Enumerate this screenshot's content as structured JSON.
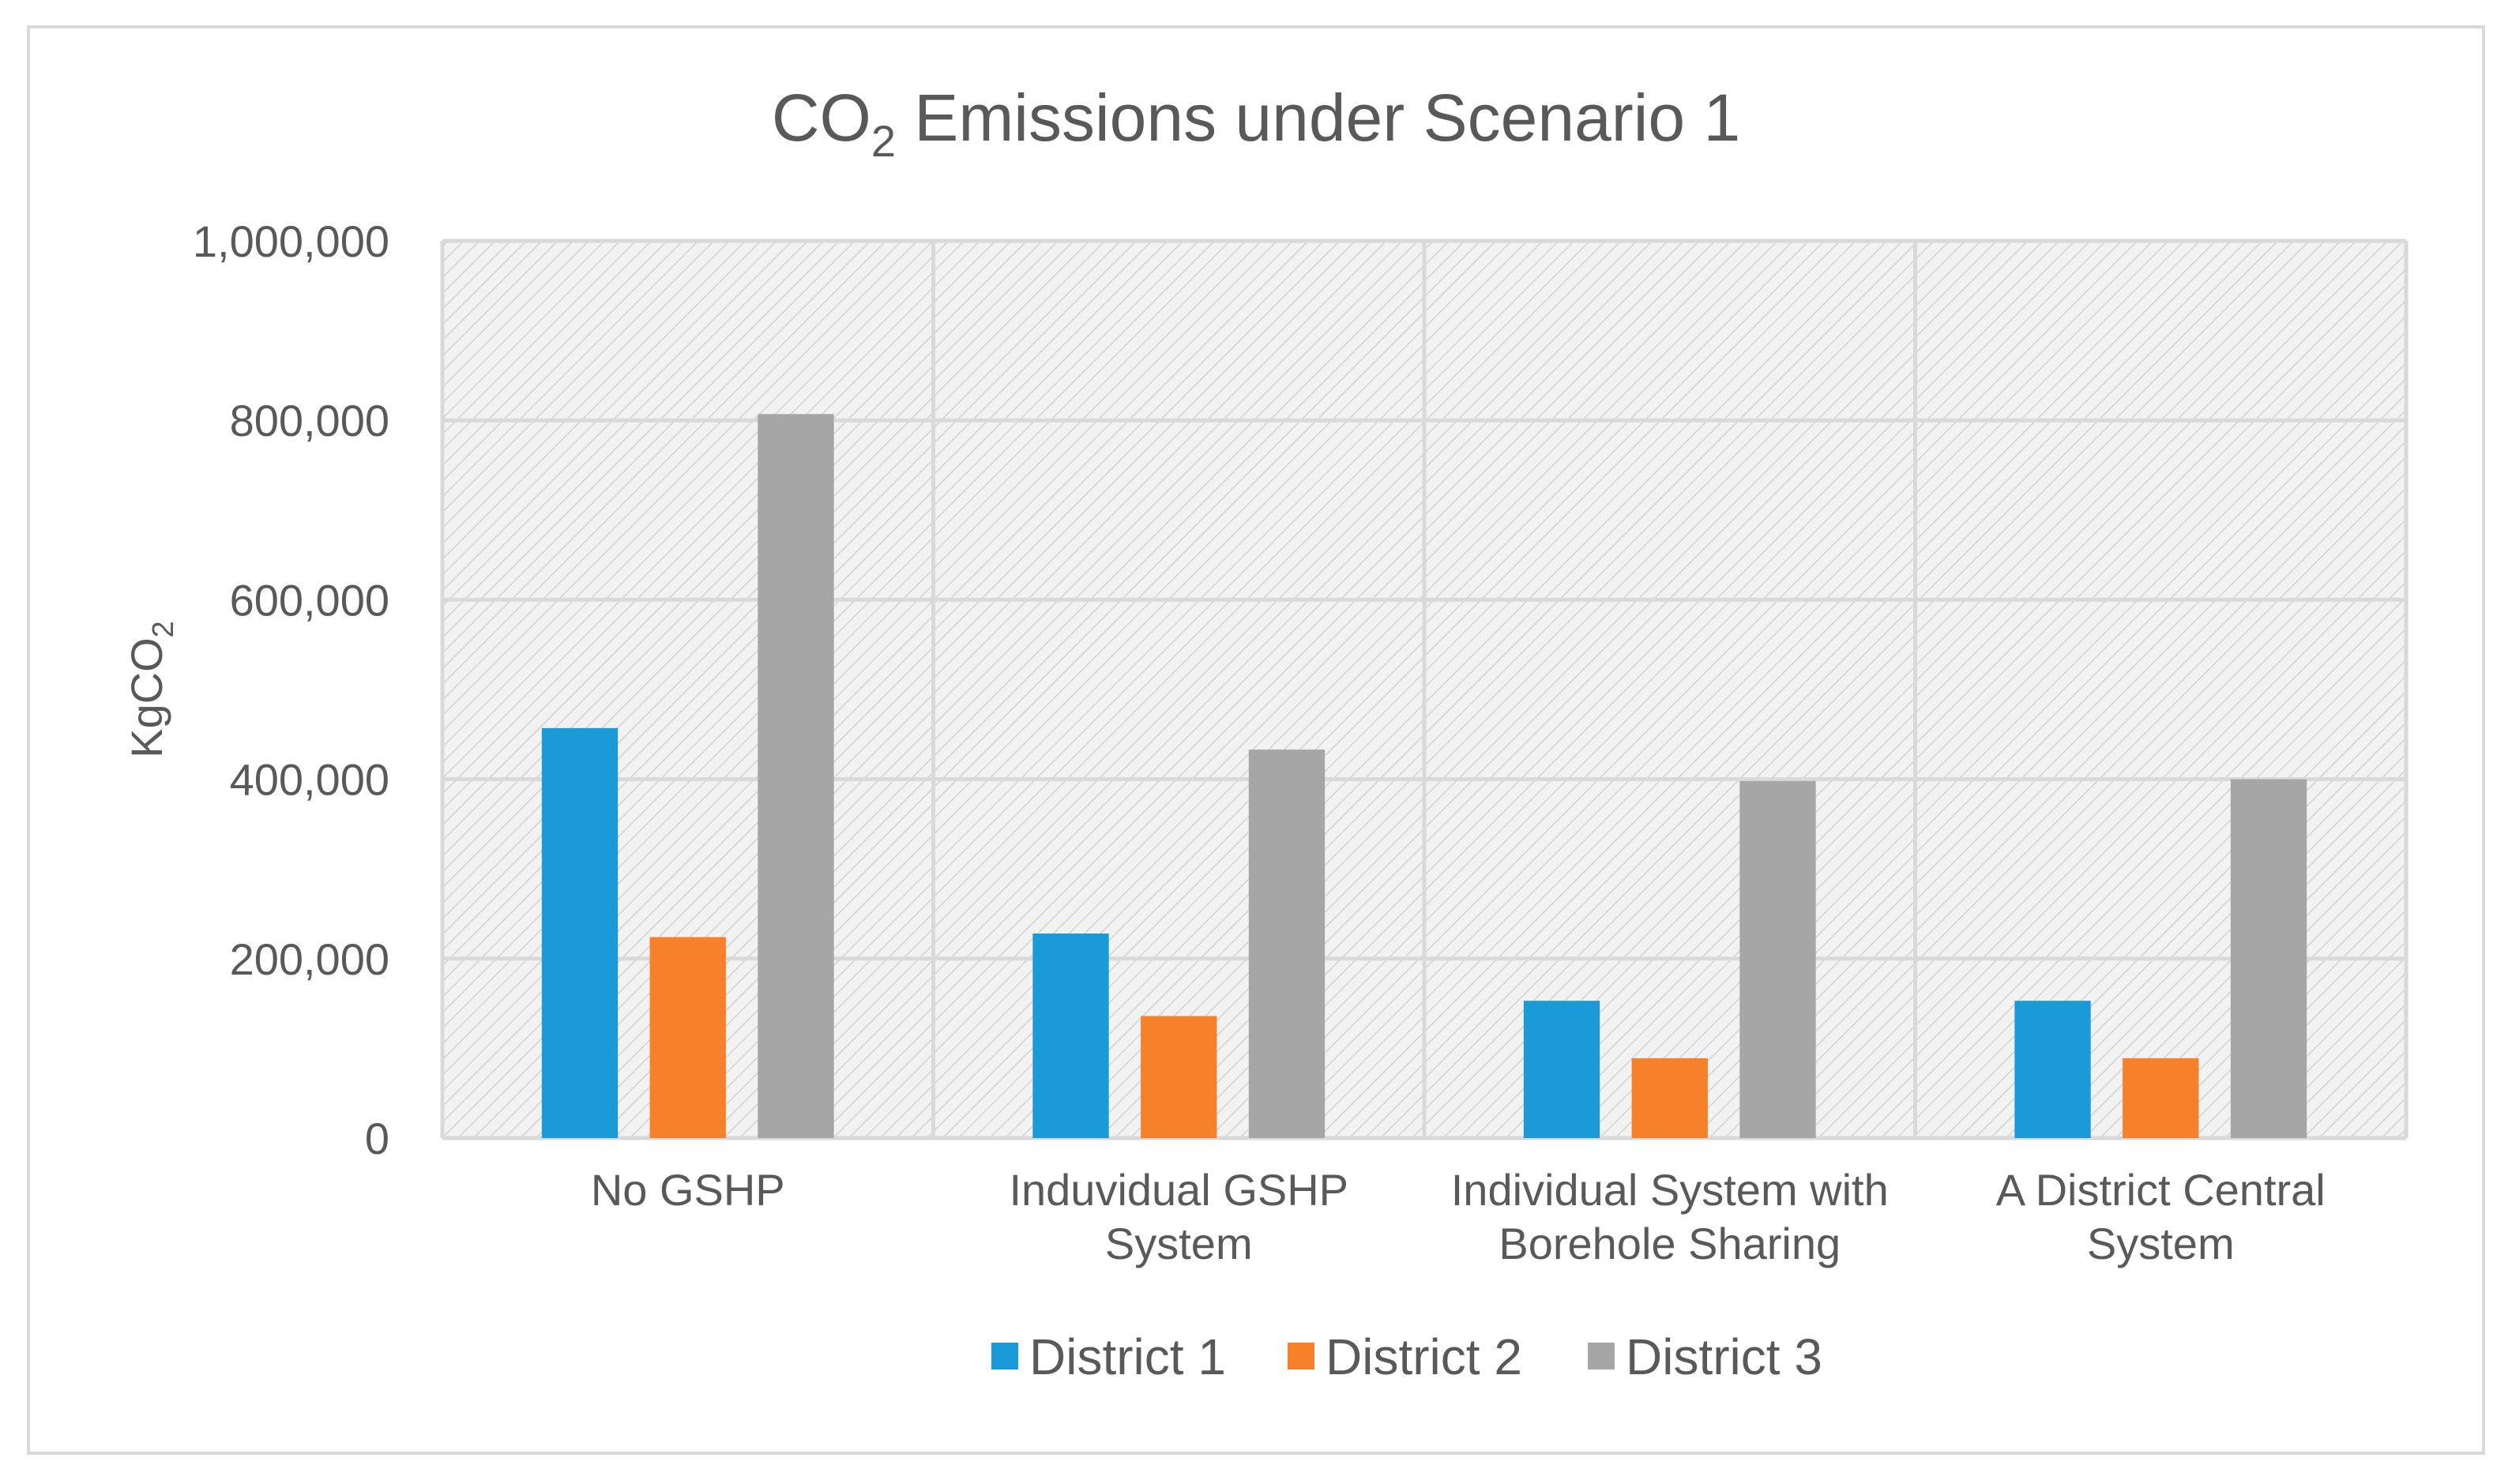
{
  "chart_data": {
    "type": "bar",
    "title": {
      "main": "CO",
      "sub": "2",
      "rest": " Emissions under Scenario 1"
    },
    "ylabel": {
      "main": "KgCO",
      "sub": "2"
    },
    "xlabel": "",
    "categories": [
      [
        "No GSHP"
      ],
      [
        "Induvidual GSHP",
        "System"
      ],
      [
        "Individual System with",
        "Borehole Sharing"
      ],
      [
        "A District Central",
        "System"
      ]
    ],
    "series": [
      {
        "name": "District 1",
        "color": "#1a9bd7",
        "values": [
          457000,
          228000,
          153000,
          153000
        ]
      },
      {
        "name": "District 2",
        "color": "#f7802a",
        "values": [
          224000,
          136000,
          89000,
          89000
        ]
      },
      {
        "name": "District 3",
        "color": "#a6a6a6",
        "values": [
          807000,
          433000,
          398000,
          400000
        ]
      }
    ],
    "ylim": [
      0,
      1000000
    ],
    "yticks": [
      0,
      200000,
      400000,
      600000,
      800000,
      1000000
    ],
    "ytick_labels": [
      "0",
      "200,000",
      "400,000",
      "600,000",
      "800,000",
      "1,000,000"
    ],
    "grid": true,
    "plot_area_pattern": "diagonal-hatch",
    "legend_position": "bottom"
  }
}
